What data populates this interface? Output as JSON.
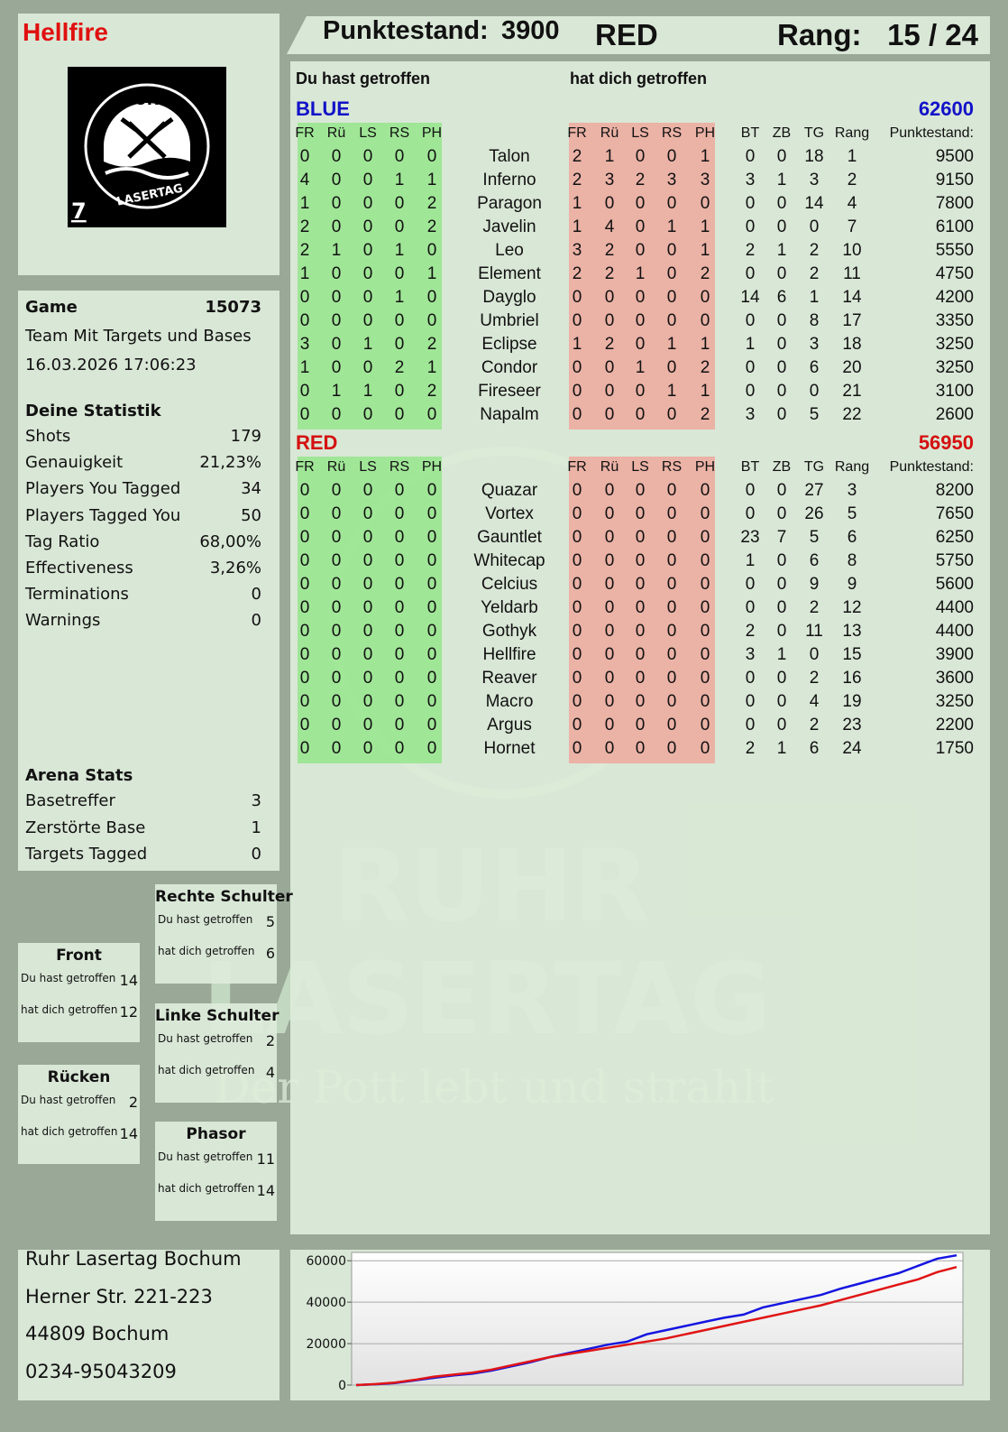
{
  "header": {
    "player": "Hellfire",
    "score_label": "Punktestand:",
    "score": 3900,
    "team": "RED",
    "rank_label": "Rang:",
    "rank": "15 / 24"
  },
  "logo": {
    "top": "RUHR",
    "bottom": "LASERTAG",
    "number": "7"
  },
  "watermark": {
    "line1": "RUHR",
    "line2": "LASERTAG",
    "slogan": "Der Pott lebt und strahlt"
  },
  "game": {
    "label": "Game",
    "id": 15073,
    "mode": "Team Mit Targets und Bases",
    "datetime": "16.03.2026 17:06:23"
  },
  "stats": {
    "title": "Deine Statistik",
    "items": [
      [
        "Shots",
        179
      ],
      [
        "Genauigkeit",
        "21,23%"
      ],
      [
        "Players You Tagged",
        34
      ],
      [
        "Players Tagged You",
        50
      ],
      [
        "Tag Ratio",
        "68,00%"
      ],
      [
        "Effectiveness",
        "3,26%"
      ],
      [
        "Terminations",
        0
      ],
      [
        "Warnings",
        0
      ]
    ]
  },
  "arena": {
    "title": "Arena Stats",
    "items": [
      [
        "Basetreffer",
        3
      ],
      [
        "Zerstörte Base",
        1
      ],
      [
        "Targets Tagged",
        0
      ]
    ]
  },
  "zones": [
    {
      "title": "Rechte Schulter",
      "rows": [
        [
          "Du hast getroffen",
          5
        ],
        [
          "hat dich getroffen",
          6
        ]
      ]
    },
    {
      "title": "Front",
      "rows": [
        [
          "Du hast getroffen",
          14
        ],
        [
          "hat dich getroffen",
          12
        ]
      ]
    },
    {
      "title": "Linke Schulter",
      "rows": [
        [
          "Du hast getroffen",
          2
        ],
        [
          "hat dich getroffen",
          4
        ]
      ]
    },
    {
      "title": "Rücken",
      "rows": [
        [
          "Du hast getroffen",
          2
        ],
        [
          "hat dich getroffen",
          14
        ]
      ]
    },
    {
      "title": "Phasor",
      "rows": [
        [
          "Du hast getroffen",
          11
        ],
        [
          "hat dich getroffen",
          14
        ]
      ]
    }
  ],
  "address": [
    "Ruhr Lasertag Bochum",
    "Herner Str. 221-223",
    "44809 Bochum",
    "0234-95043209"
  ],
  "table": {
    "hit_title": "Du hast getroffen",
    "got_title": "hat dich getroffen",
    "hit_columns": [
      "FR",
      "Rü",
      "LS",
      "RS",
      "PH"
    ],
    "stat_columns": [
      "BT",
      "ZB",
      "TG",
      "Rang",
      "Punktestand:"
    ],
    "teams": [
      {
        "name": "BLUE",
        "color": "#1212c8",
        "total": 62600,
        "players": [
          {
            "name": "Talon",
            "hit": [
              0,
              0,
              0,
              0,
              0
            ],
            "got": [
              2,
              1,
              0,
              0,
              1
            ],
            "stats": [
              0,
              0,
              18,
              1,
              9500
            ]
          },
          {
            "name": "Inferno",
            "hit": [
              4,
              0,
              0,
              1,
              1
            ],
            "got": [
              2,
              3,
              2,
              3,
              3
            ],
            "stats": [
              3,
              1,
              3,
              2,
              9150
            ]
          },
          {
            "name": "Paragon",
            "hit": [
              1,
              0,
              0,
              0,
              2
            ],
            "got": [
              1,
              0,
              0,
              0,
              0
            ],
            "stats": [
              0,
              0,
              14,
              4,
              7800
            ]
          },
          {
            "name": "Javelin",
            "hit": [
              2,
              0,
              0,
              0,
              2
            ],
            "got": [
              1,
              4,
              0,
              1,
              1
            ],
            "stats": [
              0,
              0,
              0,
              7,
              6100
            ]
          },
          {
            "name": "Leo",
            "hit": [
              2,
              1,
              0,
              1,
              0
            ],
            "got": [
              3,
              2,
              0,
              0,
              1
            ],
            "stats": [
              2,
              1,
              2,
              10,
              5550
            ]
          },
          {
            "name": "Element",
            "hit": [
              1,
              0,
              0,
              0,
              1
            ],
            "got": [
              2,
              2,
              1,
              0,
              2
            ],
            "stats": [
              0,
              0,
              2,
              11,
              4750
            ]
          },
          {
            "name": "Dayglo",
            "hit": [
              0,
              0,
              0,
              1,
              0
            ],
            "got": [
              0,
              0,
              0,
              0,
              0
            ],
            "stats": [
              14,
              6,
              1,
              14,
              4200
            ]
          },
          {
            "name": "Umbriel",
            "hit": [
              0,
              0,
              0,
              0,
              0
            ],
            "got": [
              0,
              0,
              0,
              0,
              0
            ],
            "stats": [
              0,
              0,
              8,
              17,
              3350
            ]
          },
          {
            "name": "Eclipse",
            "hit": [
              3,
              0,
              1,
              0,
              2
            ],
            "got": [
              1,
              2,
              0,
              1,
              1
            ],
            "stats": [
              1,
              0,
              3,
              18,
              3250
            ]
          },
          {
            "name": "Condor",
            "hit": [
              1,
              0,
              0,
              2,
              1
            ],
            "got": [
              0,
              0,
              1,
              0,
              2
            ],
            "stats": [
              0,
              0,
              6,
              20,
              3250
            ]
          },
          {
            "name": "Fireseer",
            "hit": [
              0,
              1,
              1,
              0,
              2
            ],
            "got": [
              0,
              0,
              0,
              1,
              1
            ],
            "stats": [
              0,
              0,
              0,
              21,
              3100
            ]
          },
          {
            "name": "Napalm",
            "hit": [
              0,
              0,
              0,
              0,
              0
            ],
            "got": [
              0,
              0,
              0,
              0,
              2
            ],
            "stats": [
              3,
              0,
              5,
              22,
              2600
            ]
          }
        ]
      },
      {
        "name": "RED",
        "color": "#d41010",
        "total": 56950,
        "players": [
          {
            "name": "Quazar",
            "hit": [
              0,
              0,
              0,
              0,
              0
            ],
            "got": [
              0,
              0,
              0,
              0,
              0
            ],
            "stats": [
              0,
              0,
              27,
              3,
              8200
            ]
          },
          {
            "name": "Vortex",
            "hit": [
              0,
              0,
              0,
              0,
              0
            ],
            "got": [
              0,
              0,
              0,
              0,
              0
            ],
            "stats": [
              0,
              0,
              26,
              5,
              7650
            ]
          },
          {
            "name": "Gauntlet",
            "hit": [
              0,
              0,
              0,
              0,
              0
            ],
            "got": [
              0,
              0,
              0,
              0,
              0
            ],
            "stats": [
              23,
              7,
              5,
              6,
              6250
            ]
          },
          {
            "name": "Whitecap",
            "hit": [
              0,
              0,
              0,
              0,
              0
            ],
            "got": [
              0,
              0,
              0,
              0,
              0
            ],
            "stats": [
              1,
              0,
              6,
              8,
              5750
            ]
          },
          {
            "name": "Celcius",
            "hit": [
              0,
              0,
              0,
              0,
              0
            ],
            "got": [
              0,
              0,
              0,
              0,
              0
            ],
            "stats": [
              0,
              0,
              9,
              9,
              5600
            ]
          },
          {
            "name": "Yeldarb",
            "hit": [
              0,
              0,
              0,
              0,
              0
            ],
            "got": [
              0,
              0,
              0,
              0,
              0
            ],
            "stats": [
              0,
              0,
              2,
              12,
              4400
            ]
          },
          {
            "name": "Gothyk",
            "hit": [
              0,
              0,
              0,
              0,
              0
            ],
            "got": [
              0,
              0,
              0,
              0,
              0
            ],
            "stats": [
              2,
              0,
              11,
              13,
              4400
            ]
          },
          {
            "name": "Hellfire",
            "hit": [
              0,
              0,
              0,
              0,
              0
            ],
            "got": [
              0,
              0,
              0,
              0,
              0
            ],
            "stats": [
              3,
              1,
              0,
              15,
              3900
            ]
          },
          {
            "name": "Reaver",
            "hit": [
              0,
              0,
              0,
              0,
              0
            ],
            "got": [
              0,
              0,
              0,
              0,
              0
            ],
            "stats": [
              0,
              0,
              2,
              16,
              3600
            ]
          },
          {
            "name": "Macro",
            "hit": [
              0,
              0,
              0,
              0,
              0
            ],
            "got": [
              0,
              0,
              0,
              0,
              0
            ],
            "stats": [
              0,
              0,
              4,
              19,
              3250
            ]
          },
          {
            "name": "Argus",
            "hit": [
              0,
              0,
              0,
              0,
              0
            ],
            "got": [
              0,
              0,
              0,
              0,
              0
            ],
            "stats": [
              0,
              0,
              2,
              23,
              2200
            ]
          },
          {
            "name": "Hornet",
            "hit": [
              0,
              0,
              0,
              0,
              0
            ],
            "got": [
              0,
              0,
              0,
              0,
              0
            ],
            "stats": [
              2,
              1,
              6,
              24,
              1750
            ]
          }
        ]
      }
    ]
  },
  "chart_data": {
    "type": "line",
    "ylim": [
      0,
      64000
    ],
    "yticks": [
      0,
      20000,
      40000,
      60000
    ],
    "grid": true,
    "series": [
      {
        "name": "BLUE",
        "color": "#1515e0",
        "values": [
          0,
          400,
          1000,
          2200,
          3500,
          4600,
          5500,
          7000,
          9000,
          11000,
          13500,
          15500,
          17500,
          19500,
          21000,
          24500,
          26500,
          28500,
          30500,
          32500,
          34000,
          37500,
          39500,
          41500,
          43500,
          46500,
          49000,
          51500,
          54000,
          57500,
          61000,
          62600
        ]
      },
      {
        "name": "RED",
        "color": "#e01515",
        "values": [
          0,
          500,
          1200,
          2500,
          4000,
          5000,
          6000,
          7500,
          9500,
          11500,
          13500,
          15000,
          16500,
          18000,
          19500,
          21000,
          22500,
          24500,
          26500,
          28500,
          30500,
          32500,
          34500,
          36500,
          38500,
          41000,
          43500,
          46000,
          48500,
          51000,
          54500,
          56950
        ]
      }
    ]
  }
}
